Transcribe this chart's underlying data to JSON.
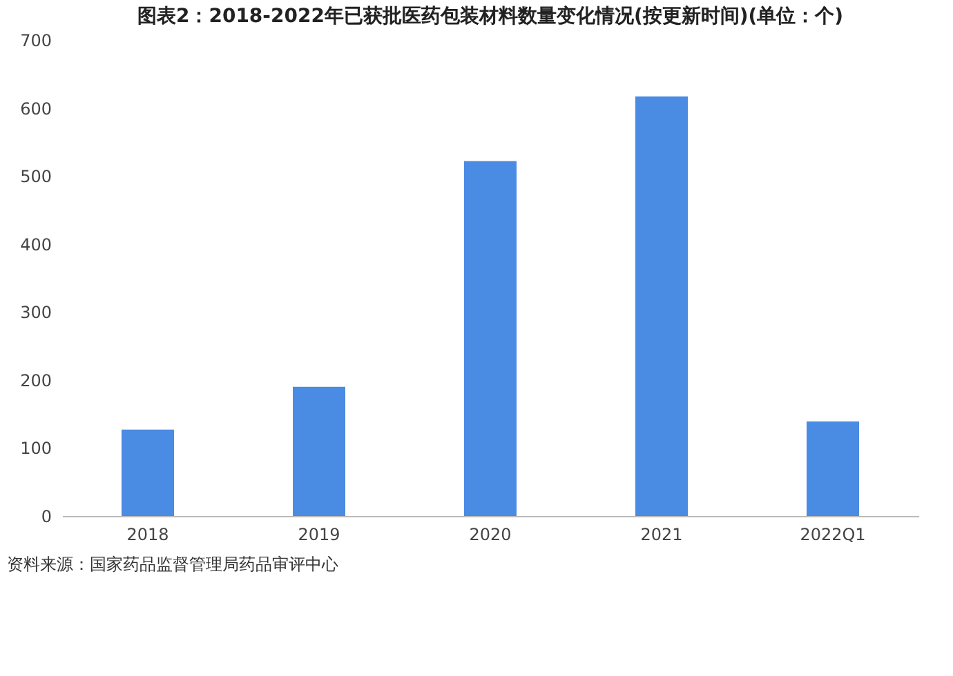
{
  "chart_data": {
    "type": "bar",
    "title": "图表2：2018-2022年已获批医药包装材料数量变化情况(按更新时间)(单位：个)",
    "categories": [
      "2018",
      "2019",
      "2020",
      "2021",
      "2022Q1"
    ],
    "values": [
      127,
      190,
      522,
      617,
      139
    ],
    "color": "#4a8be3",
    "ylim": [
      0,
      700
    ],
    "yticks": [
      0,
      100,
      200,
      300,
      400,
      500,
      600,
      700
    ],
    "grid": false,
    "annotations": [
      "资料来源：国家药品监督管理局药品审评中心"
    ]
  }
}
